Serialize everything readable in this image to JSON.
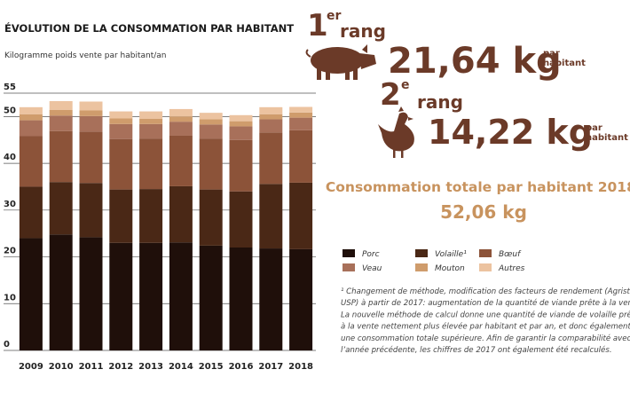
{
  "chart_data": {
    "type": "stacked-bar",
    "title": "ÉVOLUTION DE LA CONSOMMATION PAR HABITANT",
    "subtitle": "Kilogramme poids vente par habitant/an",
    "categories": [
      "2009",
      "2010",
      "2011",
      "2012",
      "2013",
      "2014",
      "2015",
      "2016",
      "2017",
      "2018"
    ],
    "series": [
      {
        "name": "Porc",
        "color": "#1f0f0a",
        "values": [
          24.0,
          24.8,
          24.2,
          23.0,
          23.0,
          23.1,
          22.4,
          22.0,
          21.8,
          21.64
        ]
      },
      {
        "name": "Volaille¹",
        "color": "#4a2816",
        "values": [
          11.0,
          11.2,
          11.6,
          11.4,
          11.5,
          12.0,
          12.0,
          12.0,
          13.8,
          14.22
        ]
      },
      {
        "name": "Bœuf",
        "color": "#8c5339",
        "values": [
          10.8,
          10.9,
          11.0,
          10.8,
          10.8,
          10.8,
          10.9,
          11.0,
          11.0,
          11.2
        ]
      },
      {
        "name": "Veau",
        "color": "#a8705a",
        "values": [
          3.4,
          3.3,
          3.3,
          3.2,
          3.1,
          3.0,
          3.0,
          2.9,
          2.8,
          2.7
        ]
      },
      {
        "name": "Mouton",
        "color": "#cf9c6c",
        "values": [
          1.3,
          1.2,
          1.2,
          1.2,
          1.1,
          1.1,
          1.1,
          1.1,
          1.1,
          1.1
        ]
      },
      {
        "name": "Autres",
        "color": "#ecc3a0",
        "values": [
          1.5,
          1.9,
          1.9,
          1.5,
          1.6,
          1.6,
          1.4,
          1.3,
          1.5,
          1.2
        ]
      }
    ],
    "ylim": [
      0,
      55
    ],
    "yticks": [
      0,
      10,
      20,
      30,
      40,
      50,
      55
    ],
    "grid": true
  },
  "ranking": [
    {
      "rank": "1",
      "suffix": "er",
      "word": "rang",
      "value": "21,64 kg",
      "unit": [
        "par",
        "habitant"
      ]
    },
    {
      "rank": "2",
      "suffix": "e",
      "word": "rang",
      "value": "14,22 kg",
      "unit": [
        "par",
        "habitant"
      ]
    }
  ],
  "total": {
    "label": "Consommation totale par habitant 2018:",
    "value": "52,06 kg"
  },
  "footnote": [
    "¹ Changement de méthode, modification des facteurs de rendement (Agristat,",
    "USP) à partir de 2017: augmentation de la quantité de viande prête à la vente.",
    "La nouvelle méthode de calcul donne une quantité de viande de volaille prête",
    "à la vente nettement plus élevée par habitant et par an, et donc également",
    "une consommation totale supérieure. Afin de garantir la comparabilité avec",
    "l’année précédente, les chiffres de 2017 ont également été recalculés."
  ]
}
